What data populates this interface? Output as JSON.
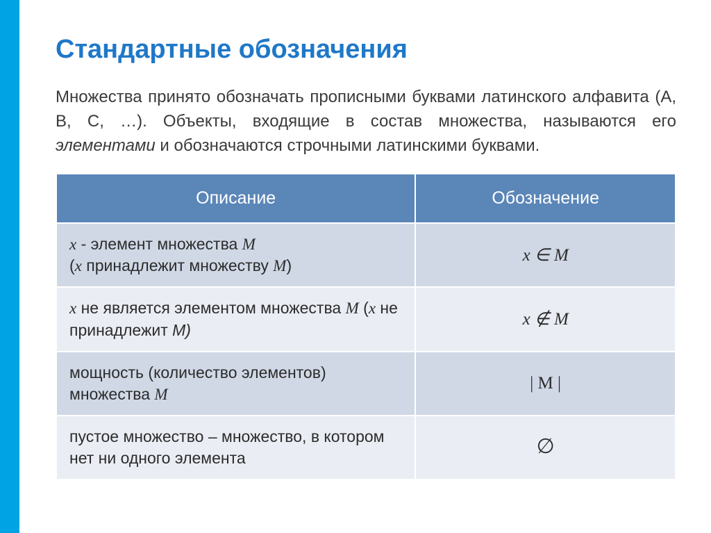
{
  "colors": {
    "accent_bar": "#00a4e4",
    "title": "#1f78c8",
    "body_text": "#3a3a3a",
    "table_header_bg": "#5b86b8",
    "table_header_text": "#ffffff",
    "row_dark": "#d0d8e6",
    "row_light": "#eaedf3",
    "cell_border": "#ffffff"
  },
  "typography": {
    "title_fontsize": 38,
    "body_fontsize": 24,
    "table_header_fontsize": 25,
    "table_cell_fontsize": 23,
    "notation_fontsize": 25
  },
  "title": "Стандартные обозначения",
  "intro_parts": {
    "p1": "Множества принято обозначать прописными буквами латинского алфавита (A, B, C, …). Объекты, входящие в состав множества, называются его ",
    "em": "элементами",
    "p2": " и обозначаются строчными латинскими буквами."
  },
  "table": {
    "headers": {
      "desc": "Описание",
      "notation": "Обозначение"
    },
    "rows": [
      {
        "desc": {
          "a": "x",
          "b": " - элемент множества ",
          "c": "M",
          "d": "(",
          "e": "x",
          "f": " принадлежит множеству ",
          "g": "M",
          "h": ")"
        },
        "notation": "x ∈ M"
      },
      {
        "desc": {
          "a": "x",
          "b": "  не является элементом множества ",
          "c": "M",
          "d": " (",
          "e": "x",
          "f": " не принадлежит ",
          "g": "M)"
        },
        "notation": "x ∉ M"
      },
      {
        "desc": {
          "a": "мощность (количество элементов) множества ",
          "b": "M"
        },
        "notation": "| M |"
      },
      {
        "desc": {
          "a": "пустое множество – множество, в котором нет ни одного элемента"
        },
        "notation": "∅"
      }
    ]
  }
}
